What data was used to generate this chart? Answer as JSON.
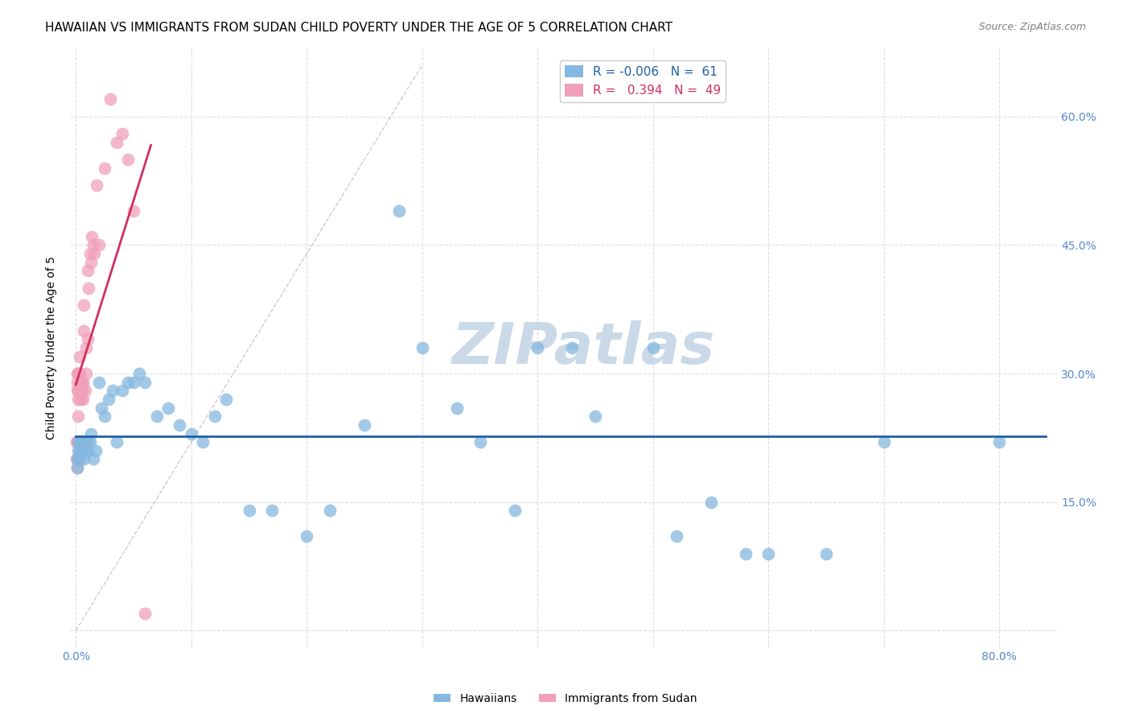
{
  "title": "HAWAIIAN VS IMMIGRANTS FROM SUDAN CHILD POVERTY UNDER THE AGE OF 5 CORRELATION CHART",
  "source": "Source: ZipAtlas.com",
  "ylabel": "Child Poverty Under the Age of 5",
  "x_ticks": [
    0.0,
    0.1,
    0.2,
    0.3,
    0.4,
    0.5,
    0.6,
    0.7,
    0.8
  ],
  "x_tick_labels": [
    "0.0%",
    "",
    "",
    "",
    "",
    "",
    "",
    "",
    "80.0%"
  ],
  "y_ticks": [
    0.0,
    0.15,
    0.3,
    0.45,
    0.6
  ],
  "y_tick_labels_right": [
    "",
    "15.0%",
    "30.0%",
    "45.0%",
    "60.0%"
  ],
  "xlim": [
    -0.005,
    0.85
  ],
  "ylim": [
    -0.02,
    0.68
  ],
  "hawaiian_R": -0.006,
  "hawaiian_N": 61,
  "sudan_R": 0.394,
  "sudan_N": 49,
  "hawaiian_color": "#85b8e0",
  "sudan_color": "#f0a0b8",
  "hawaiian_line_color": "#1f5fa6",
  "sudan_line_color": "#d03060",
  "ref_line_color": "#ccbbbb",
  "tick_color": "#5588cc",
  "background_color": "#ffffff",
  "grid_color": "#dddddd",
  "watermark_text": "ZIPatlas",
  "watermark_color": "#c5d5e5",
  "hawaiian_x": [
    0.001,
    0.001,
    0.002,
    0.002,
    0.002,
    0.003,
    0.003,
    0.003,
    0.004,
    0.004,
    0.005,
    0.005,
    0.006,
    0.007,
    0.008,
    0.009,
    0.01,
    0.011,
    0.012,
    0.013,
    0.015,
    0.017,
    0.02,
    0.022,
    0.025,
    0.028,
    0.032,
    0.035,
    0.04,
    0.045,
    0.05,
    0.055,
    0.06,
    0.07,
    0.08,
    0.09,
    0.1,
    0.11,
    0.12,
    0.13,
    0.15,
    0.17,
    0.2,
    0.22,
    0.25,
    0.28,
    0.3,
    0.33,
    0.35,
    0.38,
    0.4,
    0.43,
    0.45,
    0.5,
    0.52,
    0.55,
    0.58,
    0.6,
    0.65,
    0.7,
    0.8
  ],
  "hawaiian_y": [
    0.2,
    0.19,
    0.21,
    0.22,
    0.2,
    0.22,
    0.2,
    0.21,
    0.22,
    0.22,
    0.21,
    0.22,
    0.22,
    0.2,
    0.22,
    0.21,
    0.21,
    0.22,
    0.22,
    0.23,
    0.2,
    0.21,
    0.29,
    0.26,
    0.25,
    0.27,
    0.28,
    0.22,
    0.28,
    0.29,
    0.29,
    0.3,
    0.29,
    0.25,
    0.26,
    0.24,
    0.23,
    0.22,
    0.25,
    0.27,
    0.14,
    0.14,
    0.11,
    0.14,
    0.24,
    0.49,
    0.33,
    0.26,
    0.22,
    0.14,
    0.33,
    0.33,
    0.25,
    0.33,
    0.11,
    0.15,
    0.09,
    0.09,
    0.09,
    0.22,
    0.22
  ],
  "sudan_x": [
    0.0005,
    0.0005,
    0.001,
    0.001,
    0.001,
    0.0015,
    0.0015,
    0.0015,
    0.002,
    0.002,
    0.002,
    0.002,
    0.002,
    0.0025,
    0.003,
    0.003,
    0.003,
    0.003,
    0.004,
    0.004,
    0.004,
    0.005,
    0.005,
    0.005,
    0.006,
    0.006,
    0.007,
    0.007,
    0.008,
    0.008,
    0.009,
    0.009,
    0.01,
    0.01,
    0.011,
    0.012,
    0.013,
    0.014,
    0.015,
    0.016,
    0.018,
    0.02,
    0.025,
    0.03,
    0.035,
    0.04,
    0.045,
    0.05,
    0.06
  ],
  "sudan_y": [
    0.2,
    0.22,
    0.22,
    0.2,
    0.19,
    0.28,
    0.29,
    0.3,
    0.28,
    0.3,
    0.27,
    0.25,
    0.22,
    0.3,
    0.32,
    0.3,
    0.29,
    0.28,
    0.28,
    0.27,
    0.22,
    0.29,
    0.28,
    0.22,
    0.29,
    0.27,
    0.38,
    0.35,
    0.28,
    0.22,
    0.33,
    0.3,
    0.42,
    0.34,
    0.4,
    0.44,
    0.43,
    0.46,
    0.45,
    0.44,
    0.52,
    0.45,
    0.54,
    0.62,
    0.57,
    0.58,
    0.55,
    0.49,
    0.02
  ],
  "title_fontsize": 11,
  "axis_label_fontsize": 10,
  "tick_fontsize": 10,
  "legend_fontsize": 11,
  "watermark_fontsize": 52,
  "source_fontsize": 9
}
